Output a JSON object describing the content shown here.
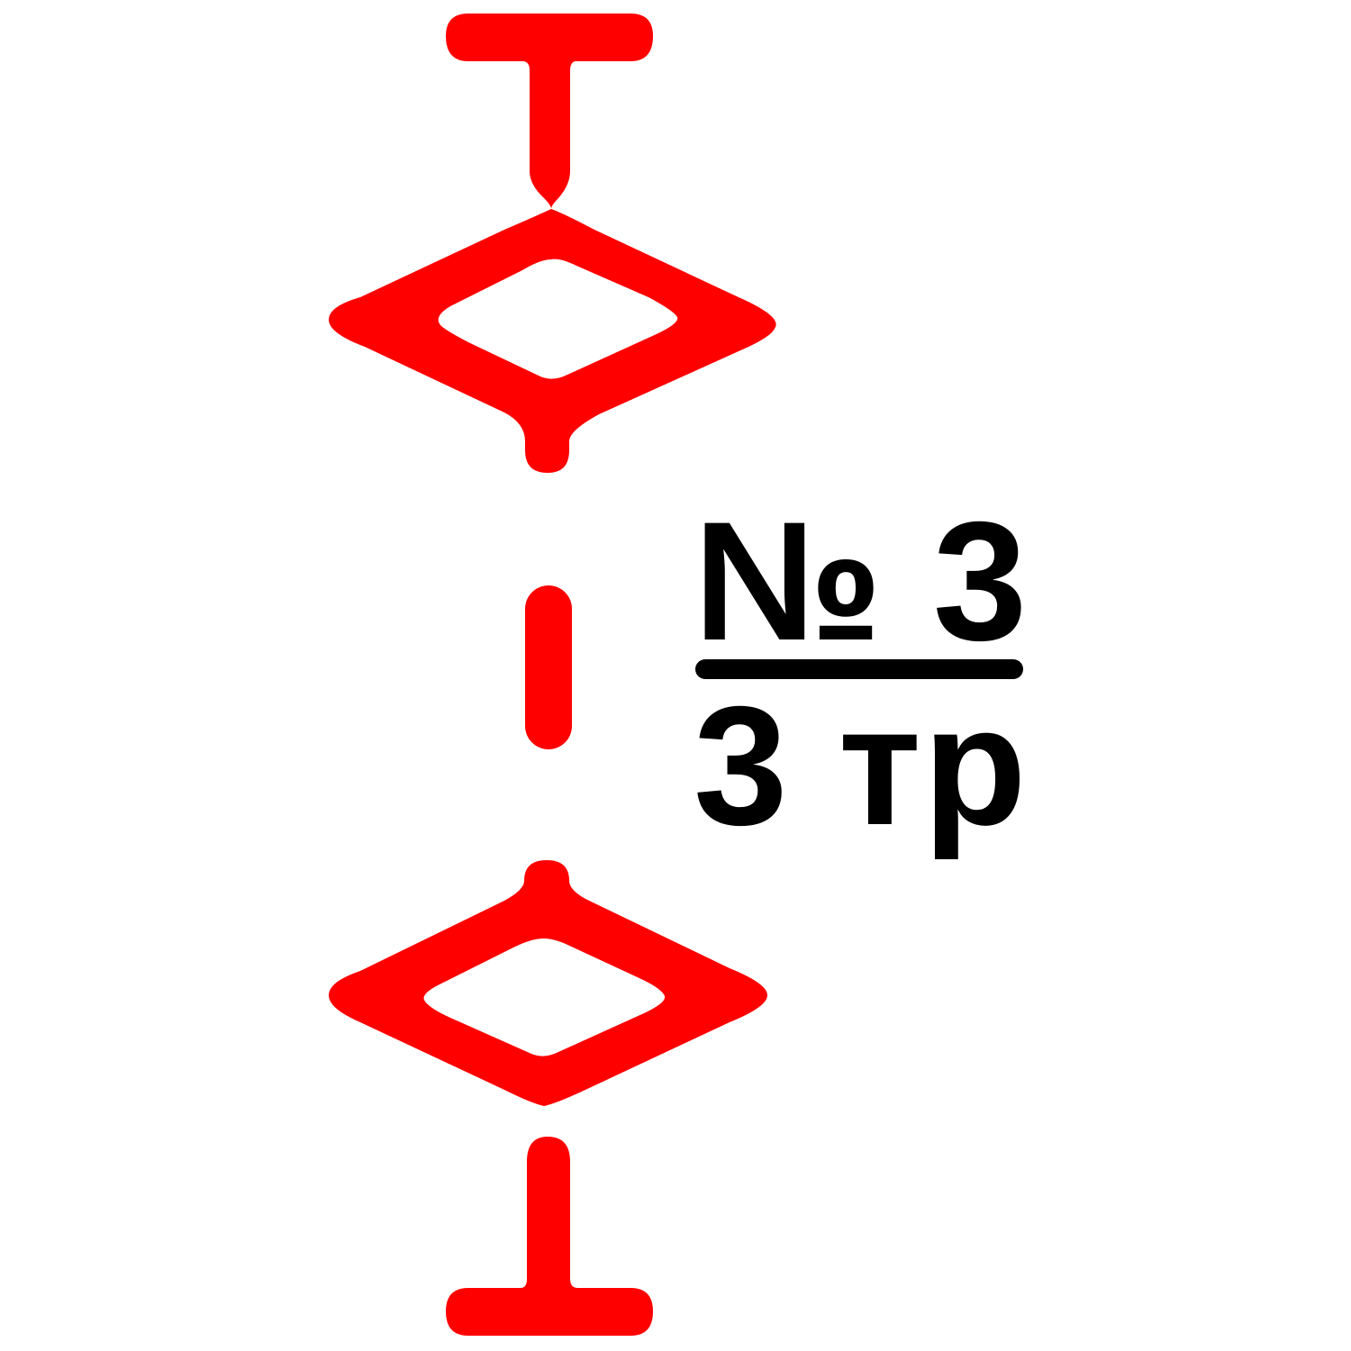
{
  "symbol": {
    "color": "#ff0000",
    "top_element": "t-cap-icon",
    "upper_element": "diamond-icon",
    "middle_element": "dash-icon",
    "lower_element": "diamond-icon",
    "bottom_element": "t-cap-icon"
  },
  "label": {
    "numerator": "№ 3",
    "denominator": "3 тр",
    "color": "#000000"
  }
}
